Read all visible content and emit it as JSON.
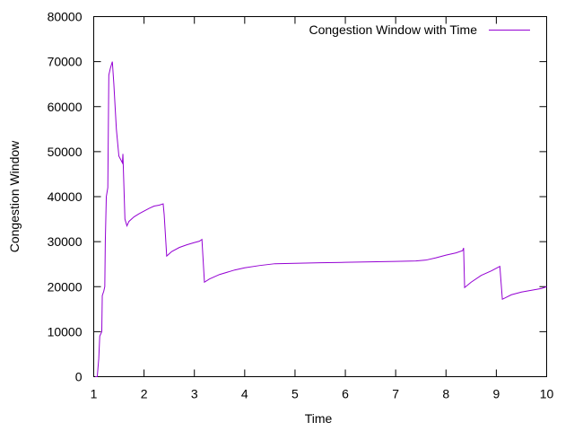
{
  "chart_data": {
    "type": "line",
    "title": "",
    "xlabel": "Time",
    "ylabel": "Congestion Window",
    "xlim": [
      1,
      10
    ],
    "ylim": [
      0,
      80000
    ],
    "x_ticks": [
      "1",
      "2",
      "3",
      "4",
      "5",
      "6",
      "7",
      "8",
      "9",
      "10"
    ],
    "y_ticks": [
      "0",
      "10000",
      "20000",
      "30000",
      "40000",
      "50000",
      "60000",
      "70000",
      "80000"
    ],
    "grid": false,
    "legend_position": "top-right",
    "series": [
      {
        "name": "Congestion Window with Time",
        "color": "#9400d3",
        "points": [
          [
            1.03,
            0
          ],
          [
            1.07,
            0
          ],
          [
            1.1,
            4000
          ],
          [
            1.12,
            9000
          ],
          [
            1.16,
            10000
          ],
          [
            1.17,
            18000
          ],
          [
            1.2,
            19000
          ],
          [
            1.22,
            20000
          ],
          [
            1.23,
            30000
          ],
          [
            1.25,
            40000
          ],
          [
            1.28,
            42000
          ],
          [
            1.3,
            67000
          ],
          [
            1.33,
            68500
          ],
          [
            1.37,
            70000
          ],
          [
            1.4,
            65000
          ],
          [
            1.45,
            55000
          ],
          [
            1.5,
            49000
          ],
          [
            1.57,
            47500
          ],
          [
            1.58,
            49500
          ],
          [
            1.62,
            35000
          ],
          [
            1.66,
            33500
          ],
          [
            1.7,
            34500
          ],
          [
            1.8,
            35500
          ],
          [
            1.9,
            36200
          ],
          [
            2.0,
            36800
          ],
          [
            2.1,
            37400
          ],
          [
            2.2,
            37900
          ],
          [
            2.3,
            38100
          ],
          [
            2.38,
            38400
          ],
          [
            2.4,
            36000
          ],
          [
            2.45,
            26800
          ],
          [
            2.55,
            27800
          ],
          [
            2.7,
            28700
          ],
          [
            2.85,
            29300
          ],
          [
            3.0,
            29800
          ],
          [
            3.1,
            30100
          ],
          [
            3.15,
            30500
          ],
          [
            3.2,
            21000
          ],
          [
            3.3,
            21700
          ],
          [
            3.5,
            22700
          ],
          [
            3.8,
            23700
          ],
          [
            4.0,
            24200
          ],
          [
            4.3,
            24700
          ],
          [
            4.6,
            25100
          ],
          [
            5.0,
            25200
          ],
          [
            5.5,
            25300
          ],
          [
            6.0,
            25400
          ],
          [
            6.5,
            25500
          ],
          [
            7.0,
            25600
          ],
          [
            7.4,
            25700
          ],
          [
            7.6,
            25900
          ],
          [
            7.8,
            26400
          ],
          [
            8.0,
            27000
          ],
          [
            8.2,
            27500
          ],
          [
            8.33,
            28000
          ],
          [
            8.35,
            28600
          ],
          [
            8.37,
            19800
          ],
          [
            8.5,
            21000
          ],
          [
            8.7,
            22500
          ],
          [
            8.9,
            23500
          ],
          [
            9.07,
            24500
          ],
          [
            9.12,
            17200
          ],
          [
            9.3,
            18200
          ],
          [
            9.5,
            18800
          ],
          [
            9.7,
            19200
          ],
          [
            9.9,
            19600
          ],
          [
            10.0,
            20000
          ]
        ]
      }
    ]
  }
}
